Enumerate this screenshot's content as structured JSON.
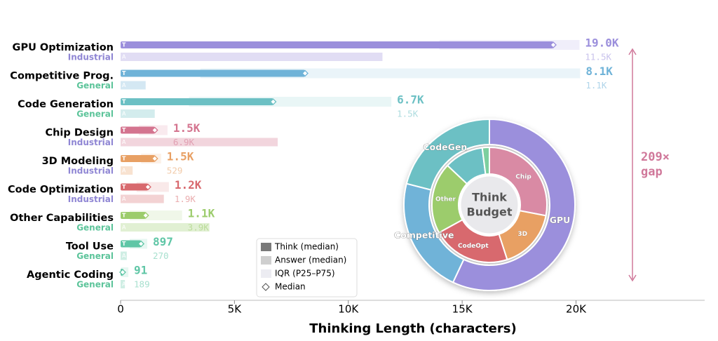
{
  "chart_data": [
    {
      "type": "hbar",
      "categories": [
        "GPU Optimization",
        "Competitive Prog.",
        "Code Generation",
        "Chip Design",
        "3D Modeling",
        "Code Optimization",
        "Other Capabilities",
        "Tool Use",
        "Agentic Coding"
      ],
      "groups": [
        "Industrial",
        "General",
        "General",
        "Industrial",
        "Industrial",
        "Industrial",
        "General",
        "General",
        "General"
      ],
      "group_colors": {
        "Industrial": "#8f86d4",
        "General": "#5cc49a"
      },
      "colors": [
        "#9b8fdc",
        "#6fb3d8",
        "#6cc0c4",
        "#d4748f",
        "#e8a064",
        "#d8696e",
        "#9ccc6c",
        "#5fc6a6",
        "#5fc6a6"
      ],
      "series": [
        {
          "name": "Think (median)",
          "tag": "T",
          "color": "#7a7a7a",
          "values": [
            19000,
            8100,
            6700,
            1500,
            1500,
            1200,
            1100,
            897,
            91
          ],
          "value_labels": [
            "19.0K",
            "8.1K",
            "6.7K",
            "1.5K",
            "1.5K",
            "1.2K",
            "1.1K",
            "897",
            "91"
          ]
        },
        {
          "name": "Answer (median)",
          "tag": "A",
          "color": "#cfcfcf",
          "values": [
            11500,
            1100,
            1500,
            6900,
            529,
            1900,
            3900,
            270,
            189
          ],
          "value_labels": [
            "11.5K",
            "1.1K",
            "1.5K",
            "6.9K",
            "529",
            "1.9K",
            "3.9K",
            "270",
            "189"
          ]
        }
      ],
      "iqr": {
        "name": "IQR (P25–P75)",
        "color": "#ececf2",
        "ranges": [
          [
            14000,
            20150
          ],
          [
            3500,
            20180
          ],
          [
            3000,
            11890
          ],
          [
            800,
            2060
          ],
          [
            900,
            1780
          ],
          [
            700,
            2120
          ],
          [
            400,
            2700
          ],
          [
            400,
            1170
          ],
          [
            20,
            340
          ]
        ]
      },
      "median_marker": "Median",
      "xlabel": "Thinking Length (characters)",
      "xlim": [
        0,
        25650
      ],
      "xticks": [
        0,
        {
          "value": 5000,
          "label": "5K"
        },
        {
          "value": 10000,
          "label": "10K"
        },
        {
          "value": 15000,
          "label": "15K"
        },
        {
          "value": 20000,
          "label": "20K"
        }
      ],
      "annotation": {
        "lines": [
          "209×",
          "gap"
        ],
        "color": "#d0789a"
      }
    },
    {
      "type": "donut",
      "center_label": [
        "Think",
        "Budget"
      ],
      "rings": [
        {
          "categories": [
            "GPU",
            "Competitive",
            "CodeGen"
          ],
          "values": [
            57,
            22,
            21
          ],
          "colors": [
            "#9b8fdc",
            "#6fb3d8",
            "#6cc0c4"
          ]
        },
        {
          "categories": [
            "Chip",
            "3D",
            "CodeOpt",
            "Other",
            null,
            null
          ],
          "values": [
            28,
            17,
            22,
            20,
            11,
            2
          ],
          "colors": [
            "#d98aa4",
            "#e8a064",
            "#d8696e",
            "#9ccc6c",
            "#6cc0c4",
            "#7ccf9f"
          ]
        }
      ]
    }
  ]
}
